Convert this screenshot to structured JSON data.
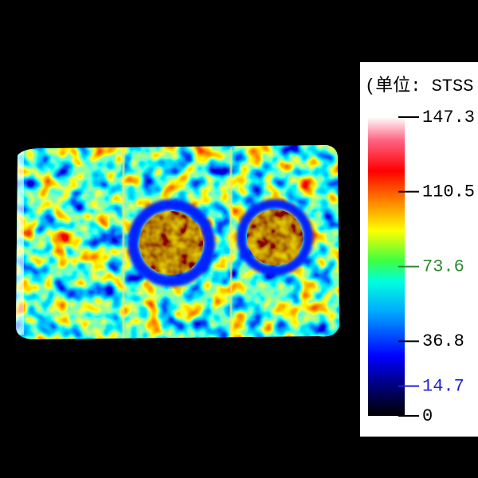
{
  "colorbar": {
    "title": "(单位: STSS",
    "range": [
      0,
      147.3
    ],
    "ticks": [
      147.3,
      110.5,
      73.6,
      36.8,
      14.7,
      0
    ],
    "tick_colors": [
      "#000000",
      "#000000",
      "#2e8b2e",
      "#000000",
      "#2020e0",
      "#000000"
    ]
  }
}
